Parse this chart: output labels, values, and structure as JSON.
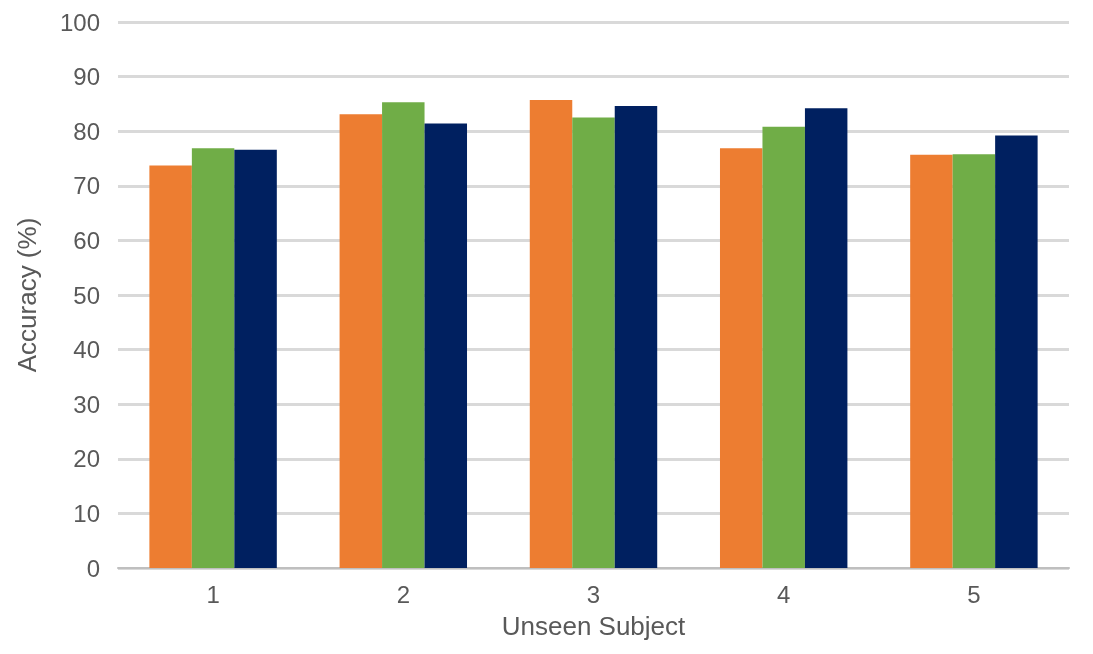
{
  "chart_data": {
    "type": "bar",
    "xlabel": "Unseen Subject",
    "ylabel": "Accuracy (%)",
    "categories": [
      "1",
      "2",
      "3",
      "4",
      "5"
    ],
    "series": [
      {
        "color": "#ed7d31",
        "values": [
          73.7,
          83.1,
          85.7,
          76.9,
          75.7
        ]
      },
      {
        "color": "#70ad47",
        "values": [
          76.9,
          85.3,
          82.5,
          80.8,
          75.8
        ]
      },
      {
        "color": "#002060",
        "values": [
          76.6,
          81.4,
          84.6,
          84.2,
          79.2
        ]
      }
    ],
    "ylim": [
      0,
      100
    ],
    "yticks": [
      0,
      10,
      20,
      30,
      40,
      50,
      60,
      70,
      80,
      90,
      100
    ],
    "grid": "y"
  }
}
